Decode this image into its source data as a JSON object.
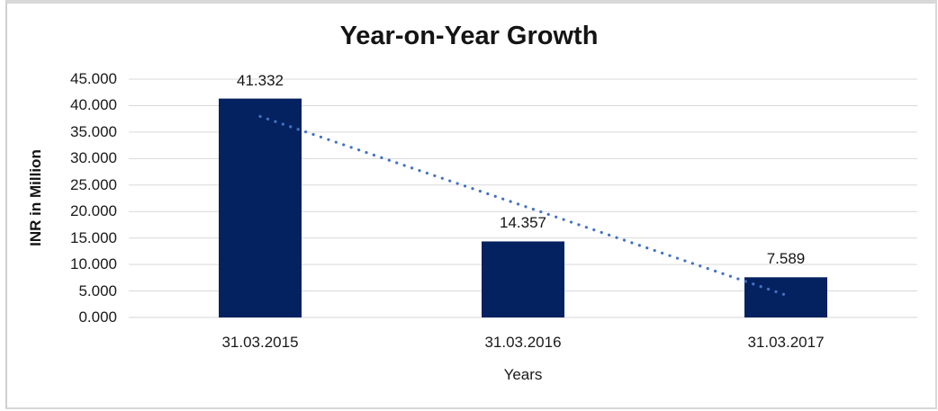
{
  "chart": {
    "title": "Year-on-Year Growth",
    "y_axis_title": "INR in Million",
    "x_axis_title": "Years"
  },
  "chart_data": {
    "type": "bar",
    "title": "Year-on-Year Growth",
    "xlabel": "Years",
    "ylabel": "INR in Million",
    "categories": [
      "31.03.2015",
      "31.03.2016",
      "31.03.2017"
    ],
    "values": [
      41.332,
      14.357,
      7.589
    ],
    "data_labels": [
      "41.332",
      "14.357",
      "7.589"
    ],
    "ylim": [
      0,
      45
    ],
    "y_tick_step": 5,
    "y_tick_labels": [
      "0.000",
      "5.000",
      "10.000",
      "15.000",
      "20.000",
      "25.000",
      "30.000",
      "35.000",
      "40.000",
      "45.000"
    ],
    "grid": true,
    "legend": false,
    "trendline": {
      "type": "linear",
      "style": "dotted"
    },
    "colors": {
      "bar": "#042160",
      "trendline": "#4472C4",
      "gridline": "#D9D9D9",
      "axis_line": "#D4D4D4",
      "text": "#1A1A1A",
      "frame": "#D8D8D8",
      "background": "#FFFFFF"
    }
  }
}
